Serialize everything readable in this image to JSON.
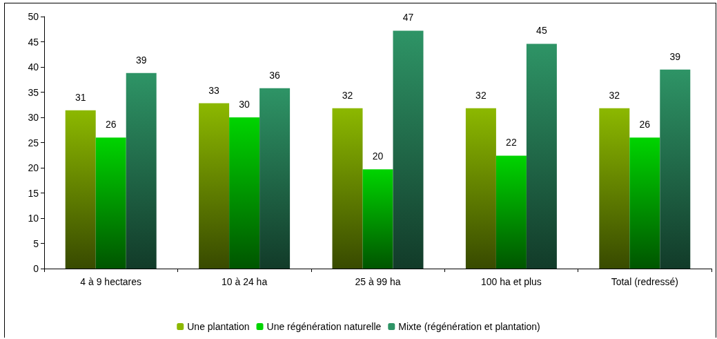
{
  "chart_data": {
    "type": "bar",
    "categories": [
      "4 à 9 hectares",
      "10 à 24 ha",
      "25 à 99 ha",
      "100 ha et plus",
      "Total (redressé)"
    ],
    "series": [
      {
        "name": "Une plantation",
        "color": "#8cb800",
        "values": [
          31.4,
          32.8,
          31.8,
          31.8,
          31.8
        ],
        "value_labels": [
          "31",
          "33",
          "32",
          "32",
          "32"
        ]
      },
      {
        "name": "Une régénération naturelle",
        "color": "#00d400",
        "values": [
          26,
          30,
          19.7,
          22.4,
          26
        ],
        "value_labels": [
          "26",
          "30",
          "20",
          "22",
          "26"
        ]
      },
      {
        "name": "Mixte (régénération et plantation)",
        "color": "#2e9466",
        "values": [
          38.8,
          35.8,
          47.2,
          44.6,
          39.5
        ],
        "value_labels": [
          "39",
          "36",
          "47",
          "45",
          "39"
        ]
      }
    ],
    "ylim": [
      0,
      50
    ],
    "yticks": [
      0,
      5,
      10,
      15,
      20,
      25,
      30,
      35,
      40,
      45,
      50
    ],
    "grid": false,
    "legend": "bottom"
  }
}
